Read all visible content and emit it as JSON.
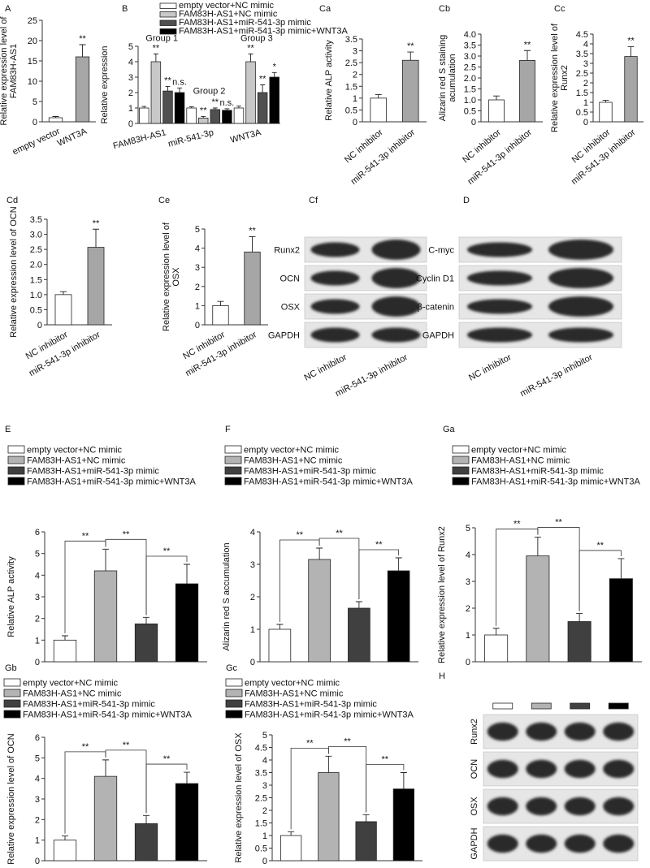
{
  "chart_data": [
    {
      "type": "bar",
      "label": "A",
      "ylabel": "Relative expression level of FAM83H-AS1",
      "categories": [
        "empty vector",
        "WNT3A"
      ],
      "values": [
        1,
        16
      ],
      "errors": [
        0.3,
        3
      ],
      "colors": [
        "#ffffff",
        "#a6a6a6"
      ],
      "sig": [
        null,
        "**"
      ],
      "ylim": [
        0,
        25
      ],
      "yticks": [
        0,
        5,
        10,
        15,
        20,
        25
      ]
    },
    {
      "type": "bar",
      "label": "B",
      "ylabel": "Relative expression",
      "categories": [
        "FAM83H-AS1",
        "miR-541-3p",
        "WNT3A"
      ],
      "group_labels": [
        "Group 1",
        "Group 2",
        "Group 3"
      ],
      "series": [
        {
          "name": "empty vector+NC mimic",
          "color": "#ffffff",
          "values": [
            1,
            1,
            1
          ],
          "errors": [
            0.1,
            0.08,
            0.12
          ]
        },
        {
          "name": "FAM83H-AS1+NC mimic",
          "color": "#c8c8c8",
          "values": [
            4,
            0.35,
            4
          ],
          "errors": [
            0.5,
            0.1,
            0.5
          ],
          "sig": [
            "**",
            "**",
            "**"
          ]
        },
        {
          "name": "FAM83H-AS1+miR-541-3p mimic",
          "color": "#505050",
          "values": [
            2.1,
            0.9,
            2
          ],
          "errors": [
            0.3,
            0.1,
            0.5
          ],
          "sig": [
            "**",
            "**",
            "**"
          ]
        },
        {
          "name": "FAM83H-AS1+miR-541-3p mimic+WNT3A",
          "color": "#000000",
          "values": [
            2,
            0.85,
            3
          ],
          "errors": [
            0.3,
            0.1,
            0.3
          ],
          "sig": [
            "n.s.",
            "n.s.",
            "*"
          ]
        }
      ],
      "legend": true,
      "ylim": [
        0,
        5
      ],
      "yticks": [
        0,
        1,
        2,
        3,
        4,
        5
      ]
    },
    {
      "type": "bar",
      "label": "Ca",
      "ylabel": "Relative ALP activity",
      "categories": [
        "NC inhibitor",
        "miR-541-3p inhibitor"
      ],
      "values": [
        1,
        2.6
      ],
      "errors": [
        0.15,
        0.35
      ],
      "colors": [
        "#ffffff",
        "#a6a6a6"
      ],
      "sig": [
        null,
        "**"
      ],
      "ylim": [
        0,
        3.5
      ],
      "yticks": [
        0,
        0.5,
        1,
        1.5,
        2,
        2.5,
        3,
        3.5
      ]
    },
    {
      "type": "bar",
      "label": "Cb",
      "ylabel": "Alizarin red S  staining acumulation",
      "categories": [
        "NC inhibitor",
        "miR-541-3p inhibitor"
      ],
      "values": [
        1,
        2.8
      ],
      "errors": [
        0.18,
        0.45
      ],
      "colors": [
        "#ffffff",
        "#a6a6a6"
      ],
      "sig": [
        null,
        "**"
      ],
      "ylim": [
        0,
        4
      ],
      "yticks": [
        0,
        0.5,
        {
          "value": 1,
          "label": "1.0"
        },
        1.5,
        {
          "value": 2,
          "label": "2.0"
        },
        2.5,
        {
          "value": 3,
          "label": "3.0"
        },
        3.5,
        {
          "value": 4,
          "label": "4.0"
        }
      ]
    },
    {
      "type": "bar",
      "label": "Cc",
      "ylabel": "Relative expression level of Runx2",
      "categories": [
        "NC inhibitor",
        "miR-541-3p inhibitor"
      ],
      "values": [
        1,
        3.35
      ],
      "errors": [
        0.1,
        0.5
      ],
      "colors": [
        "#ffffff",
        "#a6a6a6"
      ],
      "sig": [
        null,
        "**"
      ],
      "ylim": [
        0,
        4.5
      ],
      "yticks": [
        0,
        0.5,
        1,
        1.5,
        2,
        2.5,
        3,
        3.5,
        4,
        4.5
      ]
    },
    {
      "type": "bar",
      "label": "Cd",
      "ylabel": "Relative expression level of OCN",
      "categories": [
        "NC inhibitor",
        "miR-541-3p inhibitor"
      ],
      "values": [
        1,
        2.57
      ],
      "errors": [
        0.1,
        0.6
      ],
      "colors": [
        "#ffffff",
        "#a6a6a6"
      ],
      "sig": [
        null,
        "**"
      ],
      "ylim": [
        0,
        3.5
      ],
      "yticks": [
        0,
        0.5,
        {
          "value": 1,
          "label": "1.0"
        },
        1.5,
        {
          "value": 2,
          "label": "2.0"
        },
        2.5,
        {
          "value": 3,
          "label": "3.0"
        },
        3.5
      ]
    },
    {
      "type": "bar",
      "label": "Ce",
      "ylabel": "Relative expression level of OSX",
      "categories": [
        "NC inhibitor",
        "miR-541-3p inhibitor"
      ],
      "values": [
        1,
        3.8
      ],
      "errors": [
        0.22,
        0.8
      ],
      "colors": [
        "#ffffff",
        "#a6a6a6"
      ],
      "sig": [
        null,
        "**"
      ],
      "ylim": [
        0,
        5
      ],
      "yticks": [
        0,
        1,
        2,
        3,
        4,
        5
      ]
    },
    {
      "type": "blot",
      "label": "Cf",
      "rows": [
        "Runx2",
        "OCN",
        "OSX",
        "GAPDH"
      ],
      "categories": [
        "NC inhibitor",
        "miR-541-3p inhibitor"
      ]
    },
    {
      "type": "blot",
      "label": "D",
      "rows": [
        "C-myc",
        "Cyclin D1",
        "β-catenin",
        "GAPDH"
      ],
      "categories": [
        "NC inhibitor",
        "miR-541-3p inhibitor"
      ]
    },
    {
      "type": "bar",
      "label": "E",
      "ylabel": "Relative ALP activity",
      "categories": [
        null
      ],
      "series": [
        {
          "name": "empty vector+NC mimic",
          "color": "#ffffff",
          "values": [
            1
          ],
          "errors": [
            0.2
          ]
        },
        {
          "name": "FAM83H-AS1+NC mimic",
          "color": "#b3b3b3",
          "values": [
            4.2
          ],
          "errors": [
            1.0
          ]
        },
        {
          "name": "FAM83H-AS1+miR-541-3p mimic",
          "color": "#404040",
          "values": [
            1.75
          ],
          "errors": [
            0.3
          ]
        },
        {
          "name": "FAM83H-AS1+miR-541-3p mimic+WNT3A",
          "color": "#000000",
          "values": [
            3.6
          ],
          "errors": [
            0.9
          ]
        }
      ],
      "annotations": [
        "**",
        "**",
        "**"
      ],
      "legend": true,
      "ylim": [
        0,
        6
      ],
      "yticks": [
        0,
        1,
        2,
        3,
        4,
        5,
        6
      ]
    },
    {
      "type": "bar",
      "label": "F",
      "ylabel": "Alizarin red S  accumulation",
      "categories": [
        null
      ],
      "series": [
        {
          "name": "empty vector+NC mimic",
          "color": "#ffffff",
          "values": [
            1
          ],
          "errors": [
            0.15
          ]
        },
        {
          "name": "FAM83H-AS1+NC mimic",
          "color": "#b3b3b3",
          "values": [
            3.15
          ],
          "errors": [
            0.35
          ]
        },
        {
          "name": "FAM83H-AS1+miR-541-3p mimic",
          "color": "#404040",
          "values": [
            1.65
          ],
          "errors": [
            0.2
          ]
        },
        {
          "name": "FAM83H-AS1+miR-541-3p mimic+WNT3A",
          "color": "#000000",
          "values": [
            2.8
          ],
          "errors": [
            0.4
          ]
        }
      ],
      "annotations": [
        "**",
        "**",
        "**"
      ],
      "legend": true,
      "ylim": [
        0,
        4
      ],
      "yticks": [
        0,
        1,
        2,
        3,
        4
      ]
    },
    {
      "type": "bar",
      "label": "Ga",
      "ylabel": "Relative expression level of Runx2",
      "categories": [
        null
      ],
      "series": [
        {
          "name": "empty vector+NC mimic",
          "color": "#ffffff",
          "values": [
            1
          ],
          "errors": [
            0.25
          ]
        },
        {
          "name": "FAM83H-AS1+NC mimic",
          "color": "#b3b3b3",
          "values": [
            3.95
          ],
          "errors": [
            0.7
          ]
        },
        {
          "name": "FAM83H-AS1+miR-541-3p mimic",
          "color": "#404040",
          "values": [
            1.5
          ],
          "errors": [
            0.3
          ]
        },
        {
          "name": "FAM83H-AS1+miR-541-3p mimic+WNT3A",
          "color": "#000000",
          "values": [
            3.1
          ],
          "errors": [
            0.75
          ]
        }
      ],
      "annotations": [
        "**",
        "**",
        "**"
      ],
      "legend": true,
      "ylim": [
        0,
        5
      ],
      "yticks": [
        0,
        1,
        2,
        3,
        4,
        5
      ]
    },
    {
      "type": "bar",
      "label": "Gb",
      "ylabel": "Relative expression level of OCN",
      "categories": [
        null
      ],
      "series": [
        {
          "name": "empty vector+NC mimic",
          "color": "#ffffff",
          "values": [
            1
          ],
          "errors": [
            0.2
          ]
        },
        {
          "name": "FAM83H-AS1+NC mimic",
          "color": "#b3b3b3",
          "values": [
            4.1
          ],
          "errors": [
            0.8
          ]
        },
        {
          "name": "FAM83H-AS1+miR-541-3p mimic",
          "color": "#404040",
          "values": [
            1.8
          ],
          "errors": [
            0.4
          ]
        },
        {
          "name": "FAM83H-AS1+miR-541-3p mimic+WNT3A",
          "color": "#000000",
          "values": [
            3.75
          ],
          "errors": [
            0.55
          ]
        }
      ],
      "annotations": [
        "**",
        "**",
        "**"
      ],
      "legend": true,
      "ylim": [
        0,
        6
      ],
      "yticks": [
        0,
        1,
        2,
        3,
        4,
        5,
        6
      ]
    },
    {
      "type": "bar",
      "label": "Gc",
      "ylabel": "Relative expression level of OSX",
      "categories": [
        null
      ],
      "series": [
        {
          "name": "empty vector+NC mimic",
          "color": "#ffffff",
          "values": [
            1
          ],
          "errors": [
            0.15
          ]
        },
        {
          "name": "FAM83H-AS1+NC mimic",
          "color": "#b3b3b3",
          "values": [
            3.5
          ],
          "errors": [
            0.65
          ]
        },
        {
          "name": "FAM83H-AS1+miR-541-3p mimic",
          "color": "#404040",
          "values": [
            1.55
          ],
          "errors": [
            0.28
          ]
        },
        {
          "name": "FAM83H-AS1+miR-541-3p mimic+WNT3A",
          "color": "#000000",
          "values": [
            2.85
          ],
          "errors": [
            0.65
          ]
        }
      ],
      "annotations": [
        "**",
        "**",
        "**"
      ],
      "legend": true,
      "ylim": [
        0,
        5
      ],
      "yticks": [
        0,
        0.5,
        1,
        1.5,
        2,
        2.5,
        3,
        3.5,
        4,
        4.5,
        5
      ]
    },
    {
      "type": "blot",
      "label": "H",
      "rows": [
        "Runx2",
        "OCN",
        "OSX",
        "GAPDH"
      ],
      "lane_colors": [
        "#ffffff",
        "#b3b3b3",
        "#404040",
        "#000000"
      ]
    }
  ]
}
